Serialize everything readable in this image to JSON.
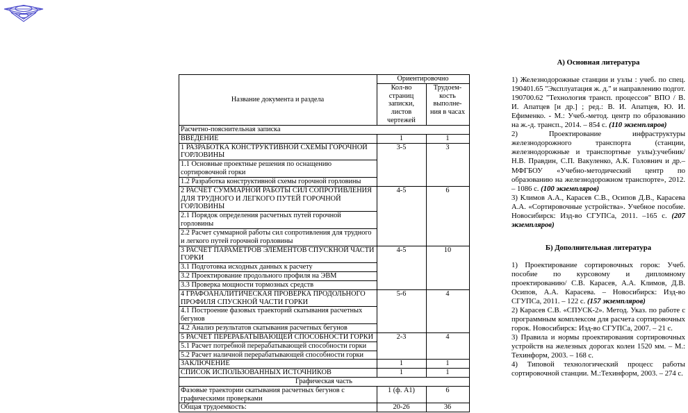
{
  "logo": {
    "name": "university-emblem",
    "color": "#4a4acb"
  },
  "table": {
    "header": {
      "col1": "Название документа и раздела",
      "group": "Ориентировочно",
      "col2": "Кол-во\nстраниц\nзаписки,\nлистов\nчертежей",
      "col3": "Трудоем-\nкость\nвыполне-\nния в часах"
    },
    "rows": [
      {
        "kind": "caption",
        "align": "left",
        "label": "Расчетно-пояснительная записка"
      },
      {
        "kind": "item",
        "label": "ВВЕДЕНИЕ",
        "pages": "1",
        "hours": "1"
      },
      {
        "kind": "item",
        "label": "1 РАЗРАБОТКА КОНСТРУКТИВНОЙ СХЕМЫ ГОРОЧНОЙ ГОРЛОВИНЫ",
        "pages": "3-5",
        "hours": "3",
        "rowspan": 3
      },
      {
        "kind": "sub",
        "label": "1.1 Основные проектные решения по оснащению сортировочной горки"
      },
      {
        "kind": "sub",
        "label": "1.2 Разработка конструктивной схемы горочной горловины"
      },
      {
        "kind": "item",
        "label": "2 РАСЧЕТ СУММАРНОЙ РАБОТЫ СИЛ СОПРОТИВЛЕНИЯ ДЛЯ ТРУДНОГО И ЛЕГКОГО ПУТЕЙ ГОРОЧНОЙ ГОРЛОВИНЫ",
        "pages": "4-5",
        "hours": "6",
        "rowspan": 3
      },
      {
        "kind": "sub",
        "label": "2.1 Порядок определения расчетных путей горочной горловины"
      },
      {
        "kind": "sub",
        "label": "2.2 Расчет суммарной работы сил сопротивления для трудного и легкого путей горочной горловины"
      },
      {
        "kind": "item",
        "label": "3 РАСЧЕТ ПАРАМЕТРОВ ЭЛЕМЕНТОВ СПУСКНОЙ ЧАСТИ ГОРКИ",
        "pages": "4-5",
        "hours": "10",
        "rowspan": 4
      },
      {
        "kind": "sub",
        "label": "3.1 Подготовка исходных данных к расчету"
      },
      {
        "kind": "sub",
        "label": "3.2 Проектирование продольного профиля на ЭВМ"
      },
      {
        "kind": "sub",
        "label": "3.3 Проверка мощности тормозных средств"
      },
      {
        "kind": "item",
        "label": "4 ГРАФОАНАЛИТИЧЕСКАЯ ПРОВЕРКА ПРОДОЛЬНОГО ПРОФИЛЯ СПУСКНОЙ ЧАСТИ ГОРКИ",
        "pages": "5-6",
        "hours": "4",
        "rowspan": 3
      },
      {
        "kind": "sub",
        "label": "4.1 Построение фазовых траекторий скатывания расчетных бегунов"
      },
      {
        "kind": "sub",
        "label": "4.2 Анализ результатов скатывания расчетных бегунов"
      },
      {
        "kind": "item",
        "label": "5 РАСЧЕТ ПЕРЕРАБАТЫВАЮЩЕЙ СПОСОБНОСТИ ГОРКИ",
        "pages": "2-3",
        "hours": "4",
        "rowspan": 3
      },
      {
        "kind": "sub",
        "label": "5.1 Расчет потребной перерабатывающей способности горки"
      },
      {
        "kind": "sub",
        "label": "5.2 Расчет наличной перерабатывающей способности горки"
      },
      {
        "kind": "item",
        "label": "ЗАКЛЮЧЕНИЕ",
        "pages": "1",
        "hours": "1"
      },
      {
        "kind": "item",
        "label": "СПИСОК ИСПОЛЬЗОВАННЫХ ИСТОЧНИКОВ",
        "pages": "1",
        "hours": "1"
      },
      {
        "kind": "caption",
        "align": "center",
        "label": "Графическая часть"
      },
      {
        "kind": "item",
        "label": "Фазовые траектории скатывания расчетных бегунов с графическими проверками",
        "pages": "1 (ф. А1)",
        "hours": "6"
      },
      {
        "kind": "item",
        "label": "Общая трудоемкость:",
        "pages": "20-26",
        "hours": "36"
      }
    ]
  },
  "literature": {
    "sections": [
      {
        "title": "А) Основная литература",
        "items": [
          {
            "text": "1) Железнодорожные станции и узлы : учеб. по спец. 190401.65 \"Эксплуатация ж. д.\" и направлению подгот. 190700.62 \"Технология трансп. процессов\" ВПО / В. И. Апатцев [и др.] ; ред.: В. И. Апатцев, Ю. И. Ефименко. - М.: Учеб.-метод. центр по образованию на ж.-д. трансп., 2014. – 854 с. ",
            "copies": "(110 экземпляров)"
          },
          {
            "text": "2) Проектирование инфраструктуры железнодорожного транспорта (станции, железнодорожные и транспортные узлы):учебник/Н.В. Правдин, С.П. Вакуленко, А.К. Головнич и др.– МФГБОУ «Учебно-методический центр по образованию на железнодорожном транспорте», 2012. – 1086 с. ",
            "copies": "(100 экземпляров)"
          },
          {
            "text": "3) Климов А.А., Карасев С.В., Осипов Д.В., Карасева А.А. «Сортировочные устройства». Учебное пособие. Новосибирск: Изд-во СГУПСа, 2011. –165 с. ",
            "copies": "(207 экземпляров)"
          }
        ]
      },
      {
        "title": "Б) Дополнительная литература",
        "items": [
          {
            "text": "1) Проектирование сортировочных горок: Учеб. пособие по курсовому и дипломному проектированию/ С.В. Карасев, А.А. Климов, Д.В. Осипов, А.А. Карасева. – Новосибирск: Изд-во СГУПСа, 2011. – 122 с. ",
            "copies": "(157 экземпляров)"
          },
          {
            "text": "2) Карасев С.В. «СПУСК-2». Метод. Указ. по работе с программным комплексом для расчета сортировочных горок. Новосибирск: Изд-во СГУПСа, 2007. – 21 с.",
            "copies": ""
          },
          {
            "text": "3) Правила и нормы проектирования сортировочных устройств на железных дорогах колеи 1520 мм. – М.: Техинформ, 2003. – 168 с.",
            "copies": ""
          },
          {
            "text": "4) Типовой технологический процесс работы сортировочной станции. М.:Техинформ, 2003. – 274 с.",
            "copies": ""
          }
        ]
      }
    ]
  }
}
